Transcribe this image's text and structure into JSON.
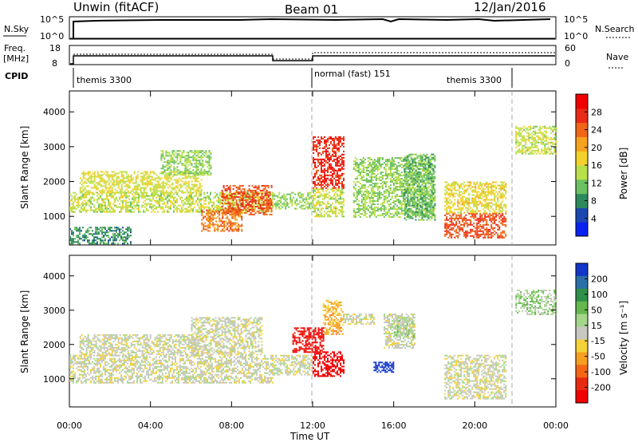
{
  "header": {
    "title_left": "Unwin (fitACF)",
    "title_center": "Beam 01",
    "title_right": "12/Jan/2016"
  },
  "strips": {
    "nsky": {
      "left_label": "N.Sky",
      "right_label": "N.Search",
      "left_ticks": [
        "10^5",
        "10^0"
      ],
      "right_ticks": [
        "10^5",
        "10^0"
      ]
    },
    "freq": {
      "left_label_line1": "Freq.",
      "left_label_line2": "[MHz]",
      "right_label": "Nave",
      "left_ticks": [
        "18",
        "8"
      ],
      "right_ticks": [
        "60",
        "0"
      ]
    },
    "cpid": {
      "label": "CPID",
      "segments": [
        "themis 3300",
        "normal (fast) 151",
        "themis 3300"
      ]
    }
  },
  "axes": {
    "xlabel": "Time UT",
    "ylabel": "Slant Range [km]",
    "xticks": [
      "00:00",
      "04:00",
      "08:00",
      "12:00",
      "16:00",
      "20:00",
      "00:00"
    ],
    "yticks": [
      "1000",
      "2000",
      "3000",
      "4000"
    ]
  },
  "colorbars": {
    "power": {
      "label": "Power [dB]",
      "ticks": [
        "4",
        "8",
        "12",
        "16",
        "20",
        "24",
        "28"
      ],
      "colors": [
        "#0a22f0",
        "#1b48b0",
        "#2e8a5c",
        "#6cc061",
        "#b8e04a",
        "#f2d22a",
        "#f6a21e",
        "#f06616",
        "#e92a16",
        "#f00000"
      ]
    },
    "velocity": {
      "label": "Velocity [m s⁻¹]",
      "ticks": [
        "200",
        "100",
        "50",
        "15",
        "-15",
        "-50",
        "-100",
        "-200"
      ],
      "colors": [
        "#1236c8",
        "#2a6fa8",
        "#2f8f4a",
        "#64b84e",
        "#a4d68a",
        "#c8c8c0",
        "#f4d23a",
        "#f6a020",
        "#f46616",
        "#e82a12",
        "#f00000"
      ]
    }
  },
  "chart_data": [
    {
      "type": "heatmap",
      "title": "Beam 01",
      "xlabel": "Time UT",
      "ylabel": "Slant Range [km]",
      "xlim": [
        "00:00",
        "24:00"
      ],
      "ylim": [
        180,
        4600
      ],
      "colorbar": {
        "label": "Power [dB]",
        "range": [
          0,
          30
        ]
      },
      "regions": [
        {
          "t": [
            0.0,
            10.0
          ],
          "r": [
            1150,
            1700
          ],
          "value": 14
        },
        {
          "t": [
            0.0,
            3.0
          ],
          "r": [
            200,
            700
          ],
          "value": 8
        },
        {
          "t": [
            0.5,
            6.5
          ],
          "r": [
            1700,
            2300
          ],
          "value": 15
        },
        {
          "t": [
            4.5,
            7.0
          ],
          "r": [
            2200,
            2900
          ],
          "value": 12
        },
        {
          "t": [
            7.5,
            10.0
          ],
          "r": [
            1050,
            1900
          ],
          "value": 24
        },
        {
          "t": [
            6.5,
            8.5
          ],
          "r": [
            600,
            1200
          ],
          "value": 22
        },
        {
          "t": [
            10.0,
            12.0
          ],
          "r": [
            1200,
            1700
          ],
          "value": 12
        },
        {
          "t": [
            12.0,
            13.5
          ],
          "r": [
            1800,
            3300
          ],
          "value": 26
        },
        {
          "t": [
            12.0,
            13.5
          ],
          "r": [
            1000,
            1800
          ],
          "value": 14
        },
        {
          "t": [
            14.0,
            18.0
          ],
          "r": [
            1000,
            2700
          ],
          "value": 12
        },
        {
          "t": [
            16.5,
            18.0
          ],
          "r": [
            900,
            2800
          ],
          "value": 10
        },
        {
          "t": [
            18.5,
            21.5
          ],
          "r": [
            400,
            1100
          ],
          "value": 24
        },
        {
          "t": [
            18.5,
            21.5
          ],
          "r": [
            1100,
            2000
          ],
          "value": 16
        },
        {
          "t": [
            22.0,
            24.0
          ],
          "r": [
            2800,
            3600
          ],
          "value": 14
        }
      ]
    },
    {
      "type": "heatmap",
      "title": "Beam 01",
      "xlabel": "Time UT",
      "ylabel": "Slant Range [km]",
      "xlim": [
        "00:00",
        "24:00"
      ],
      "ylim": [
        180,
        4600
      ],
      "colorbar": {
        "label": "Velocity [m s⁻¹]",
        "range": [
          -200,
          200
        ]
      },
      "regions": [
        {
          "t": [
            0.0,
            10.0
          ],
          "r": [
            900,
            1700
          ],
          "value": 0
        },
        {
          "t": [
            0.5,
            6.5
          ],
          "r": [
            1700,
            2300
          ],
          "value": 0
        },
        {
          "t": [
            6.0,
            9.5
          ],
          "r": [
            1700,
            2800
          ],
          "value": 0
        },
        {
          "t": [
            10.0,
            12.0
          ],
          "r": [
            1100,
            1700
          ],
          "value": 0
        },
        {
          "t": [
            12.0,
            13.5
          ],
          "r": [
            1100,
            1800
          ],
          "value": -210
        },
        {
          "t": [
            11.0,
            12.5
          ],
          "r": [
            1800,
            2500
          ],
          "value": -180
        },
        {
          "t": [
            12.5,
            13.5
          ],
          "r": [
            2300,
            3300
          ],
          "value": -60
        },
        {
          "t": [
            13.5,
            15.0
          ],
          "r": [
            2600,
            2900
          ],
          "value": 0
        },
        {
          "t": [
            15.5,
            17.0
          ],
          "r": [
            1900,
            2900
          ],
          "value": 0
        },
        {
          "t": [
            16.0,
            17.0
          ],
          "r": [
            2200,
            2800
          ],
          "value": 30
        },
        {
          "t": [
            15.0,
            16.0
          ],
          "r": [
            1200,
            1500
          ],
          "value": 200
        },
        {
          "t": [
            18.5,
            21.5
          ],
          "r": [
            400,
            1700
          ],
          "value": 0
        },
        {
          "t": [
            22.0,
            24.0
          ],
          "r": [
            2900,
            3600
          ],
          "value": 40
        }
      ]
    }
  ]
}
